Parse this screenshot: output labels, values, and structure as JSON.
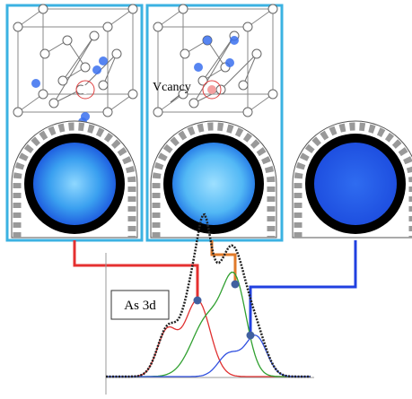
{
  "labels": {
    "vacancy": "Vcancy",
    "spectrum": "As 3d"
  }
}
